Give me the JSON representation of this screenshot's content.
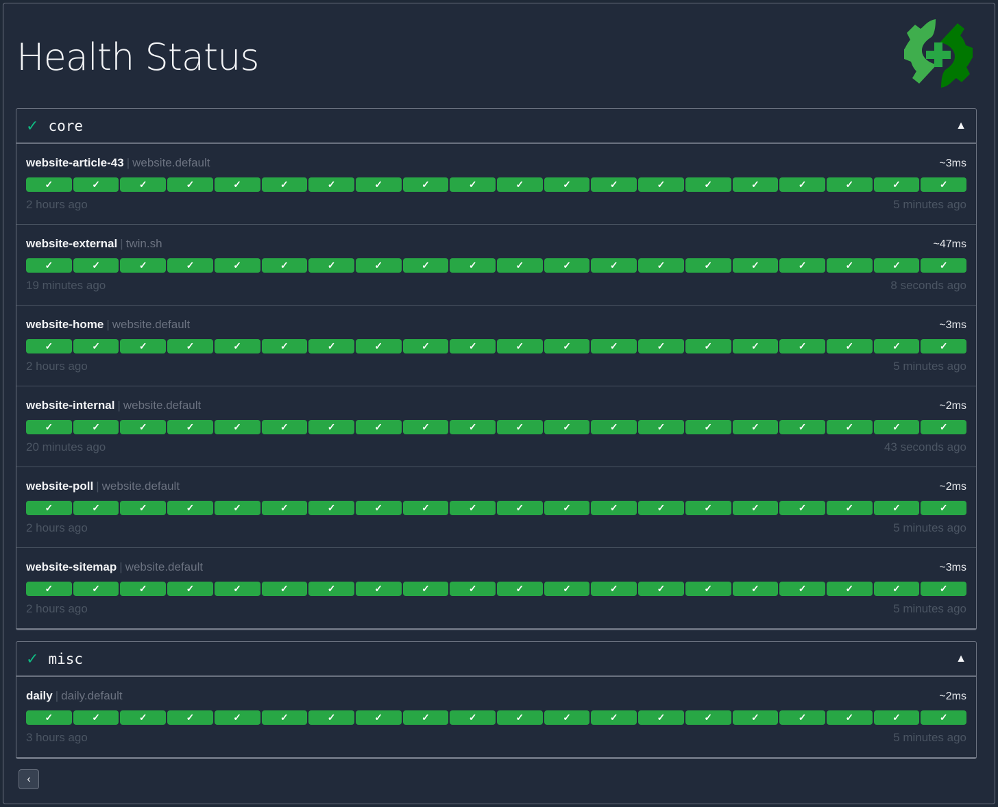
{
  "header": {
    "title": "Health Status",
    "logo": "gear-health-logo",
    "colors": {
      "logo_light": "#3fae4d",
      "logo_dark": "#007700",
      "logo_cross": "#28a745"
    }
  },
  "colors": {
    "success": "#28a745",
    "group_check": "#10b981"
  },
  "groups": [
    {
      "name": "core",
      "status_icon": "✓",
      "toggle_icon": "▲",
      "endpoints": [
        {
          "name": "website-article-43",
          "group": "website.default",
          "response_time": "~3ms",
          "oldest": "2 hours ago",
          "newest": "5 minutes ago"
        },
        {
          "name": "website-external",
          "group": "twin.sh",
          "response_time": "~47ms",
          "oldest": "19 minutes ago",
          "newest": "8 seconds ago"
        },
        {
          "name": "website-home",
          "group": "website.default",
          "response_time": "~3ms",
          "oldest": "2 hours ago",
          "newest": "5 minutes ago"
        },
        {
          "name": "website-internal",
          "group": "website.default",
          "response_time": "~2ms",
          "oldest": "20 minutes ago",
          "newest": "43 seconds ago"
        },
        {
          "name": "website-poll",
          "group": "website.default",
          "response_time": "~2ms",
          "oldest": "2 hours ago",
          "newest": "5 minutes ago"
        },
        {
          "name": "website-sitemap",
          "group": "website.default",
          "response_time": "~3ms",
          "oldest": "2 hours ago",
          "newest": "5 minutes ago"
        }
      ]
    },
    {
      "name": "misc",
      "status_icon": "✓",
      "toggle_icon": "▲",
      "endpoints": [
        {
          "name": "daily",
          "group": "daily.default",
          "response_time": "~2ms",
          "oldest": "3 hours ago",
          "newest": "5 minutes ago"
        }
      ]
    }
  ],
  "results_per_endpoint": 20,
  "result_icon": "✓",
  "pagination": {
    "prev_label": "‹"
  }
}
